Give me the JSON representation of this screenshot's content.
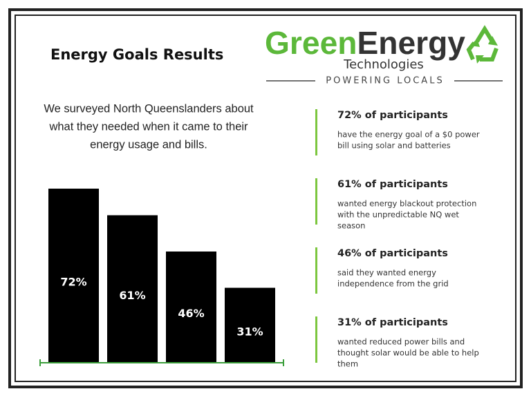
{
  "logo": {
    "green": "Green",
    "dark": "Energy",
    "sub": "Technologies",
    "tagline": "POWERING LOCALS"
  },
  "intro": [
    "We surveyed North Queenslanders about",
    "what they needed when it came to their",
    "energy usage and bills."
  ],
  "chart_data": {
    "type": "bar",
    "title": "Energy Goals Results",
    "categories": [
      null,
      null,
      null,
      null
    ],
    "values": [
      72,
      61,
      46,
      31
    ],
    "value_labels": [
      "72%",
      "61%",
      "46%",
      "31%"
    ],
    "color": "#000000",
    "baseline_color": "#3a9e3a"
  },
  "cards": [
    {
      "heading": "72% of participants",
      "lines": [
        "have the energy goal of a $0 power",
        "bill using solar and batteries"
      ]
    },
    {
      "heading": "61% of participants",
      "lines": [
        "wanted energy blackout protection",
        "with the unpredictable NQ wet",
        "season"
      ]
    },
    {
      "heading": "46% of participants",
      "lines": [
        "said they wanted energy",
        "independence from the grid"
      ]
    },
    {
      "heading": "31% of participants",
      "lines": [
        "wanted reduced power bills and",
        "thought solar would be able to help",
        "them"
      ]
    }
  ]
}
